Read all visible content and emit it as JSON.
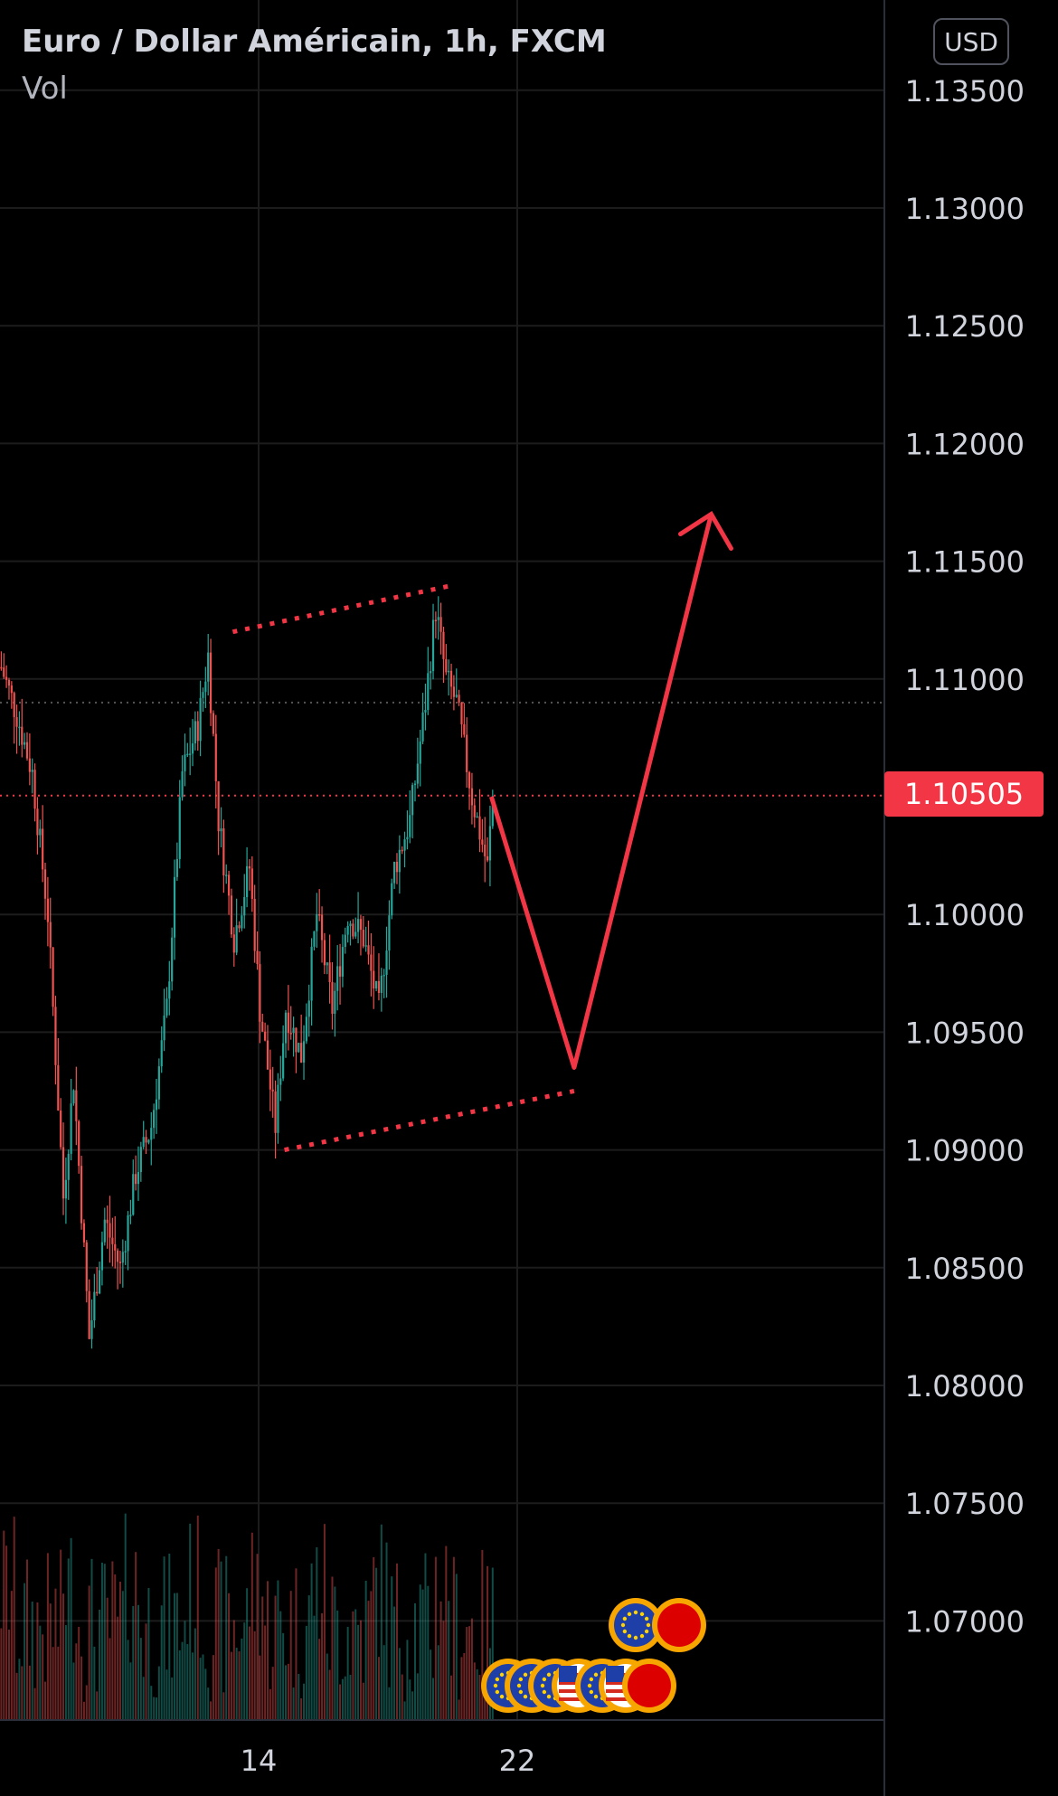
{
  "header": {
    "title": "Euro / Dollar Américain, 1h, FXCM",
    "indicator": "Vol"
  },
  "currency_button": "USD",
  "last_price": "1.10505",
  "colors": {
    "up": "#26a69a",
    "down": "#ef5350",
    "drawing": "#f23645",
    "grid": "#1c1c1c",
    "tag": "#f23645"
  },
  "chart_data": {
    "type": "candlestick",
    "title": "Euro / Dollar Américain, 1h, FXCM",
    "y_ticks": [
      "1.13500",
      "1.13000",
      "1.12500",
      "1.12000",
      "1.11500",
      "1.11000",
      "1.10505",
      "1.10000",
      "1.09500",
      "1.09000",
      "1.08500",
      "1.08000",
      "1.07500",
      "1.07000"
    ],
    "x_ticks": [
      {
        "label": "14",
        "slot": 100
      },
      {
        "label": "22",
        "slot": 200
      }
    ],
    "ylim": [
      1.066,
      1.1375
    ],
    "last_price": 1.10505,
    "reference_line": 1.109,
    "price_path": [
      [
        0,
        1.1105
      ],
      [
        6,
        1.1085
      ],
      [
        12,
        1.106
      ],
      [
        18,
        1.1
      ],
      [
        24,
        1.088
      ],
      [
        28,
        1.093
      ],
      [
        34,
        1.082
      ],
      [
        40,
        1.087
      ],
      [
        46,
        1.085
      ],
      [
        52,
        1.089
      ],
      [
        58,
        1.091
      ],
      [
        64,
        1.096
      ],
      [
        70,
        1.106
      ],
      [
        76,
        1.108
      ],
      [
        80,
        1.111
      ],
      [
        84,
        1.104
      ],
      [
        90,
        1.099
      ],
      [
        96,
        1.102
      ],
      [
        100,
        1.096
      ],
      [
        106,
        1.091
      ],
      [
        110,
        1.096
      ],
      [
        116,
        1.094
      ],
      [
        122,
        1.1
      ],
      [
        128,
        1.096
      ],
      [
        134,
        1.1
      ],
      [
        140,
        1.099
      ],
      [
        146,
        1.096
      ],
      [
        152,
        1.102
      ],
      [
        158,
        1.104
      ],
      [
        164,
        1.109
      ],
      [
        168,
        1.113
      ],
      [
        172,
        1.11
      ],
      [
        176,
        1.109
      ],
      [
        182,
        1.105
      ],
      [
        188,
        1.102
      ],
      [
        190,
        1.105
      ]
    ],
    "projection": [
      [
        190,
        1.105
      ],
      [
        222,
        1.0935
      ],
      [
        275,
        1.117
      ]
    ],
    "channel_upper": [
      [
        90,
        1.112
      ],
      [
        176,
        1.114
      ]
    ],
    "channel_lower": [
      [
        110,
        1.09
      ],
      [
        222,
        1.0925
      ]
    ],
    "events": [
      "EU",
      "EU",
      "EU",
      "US",
      "EU",
      "US",
      "DE",
      "EU",
      "DE"
    ]
  }
}
